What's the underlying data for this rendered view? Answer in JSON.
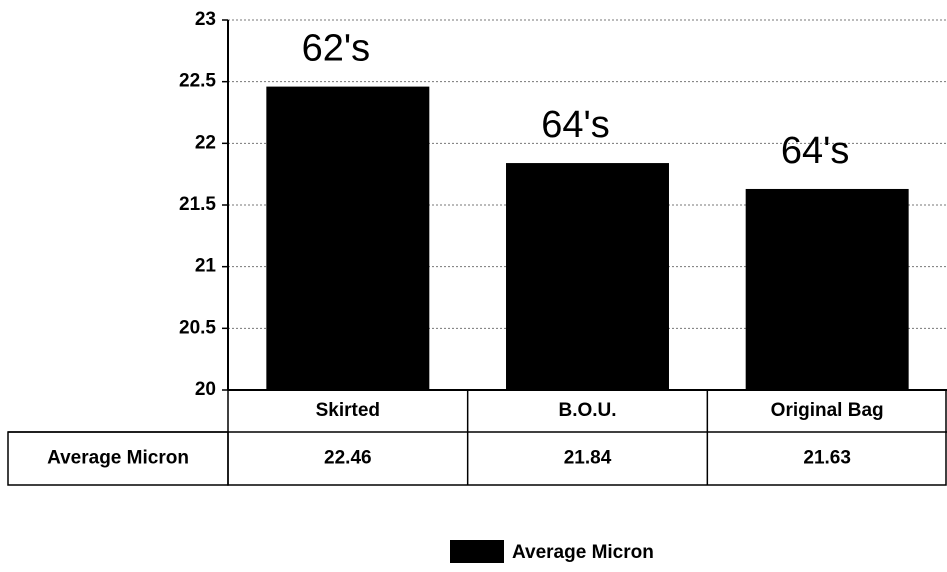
{
  "chart_data": {
    "type": "bar",
    "categories": [
      "Skirted",
      "B.O.U.",
      "Original Bag"
    ],
    "series": [
      {
        "name": "Average Micron",
        "color": "#000000",
        "values": [
          22.46,
          21.84,
          21.63
        ]
      }
    ],
    "annotations": [
      "62's",
      "64's",
      "64's"
    ],
    "ylim": [
      20,
      23
    ],
    "yticks": [
      20,
      20.5,
      21,
      21.5,
      22,
      22.5,
      23
    ],
    "grid": true,
    "legend": "bottom"
  }
}
